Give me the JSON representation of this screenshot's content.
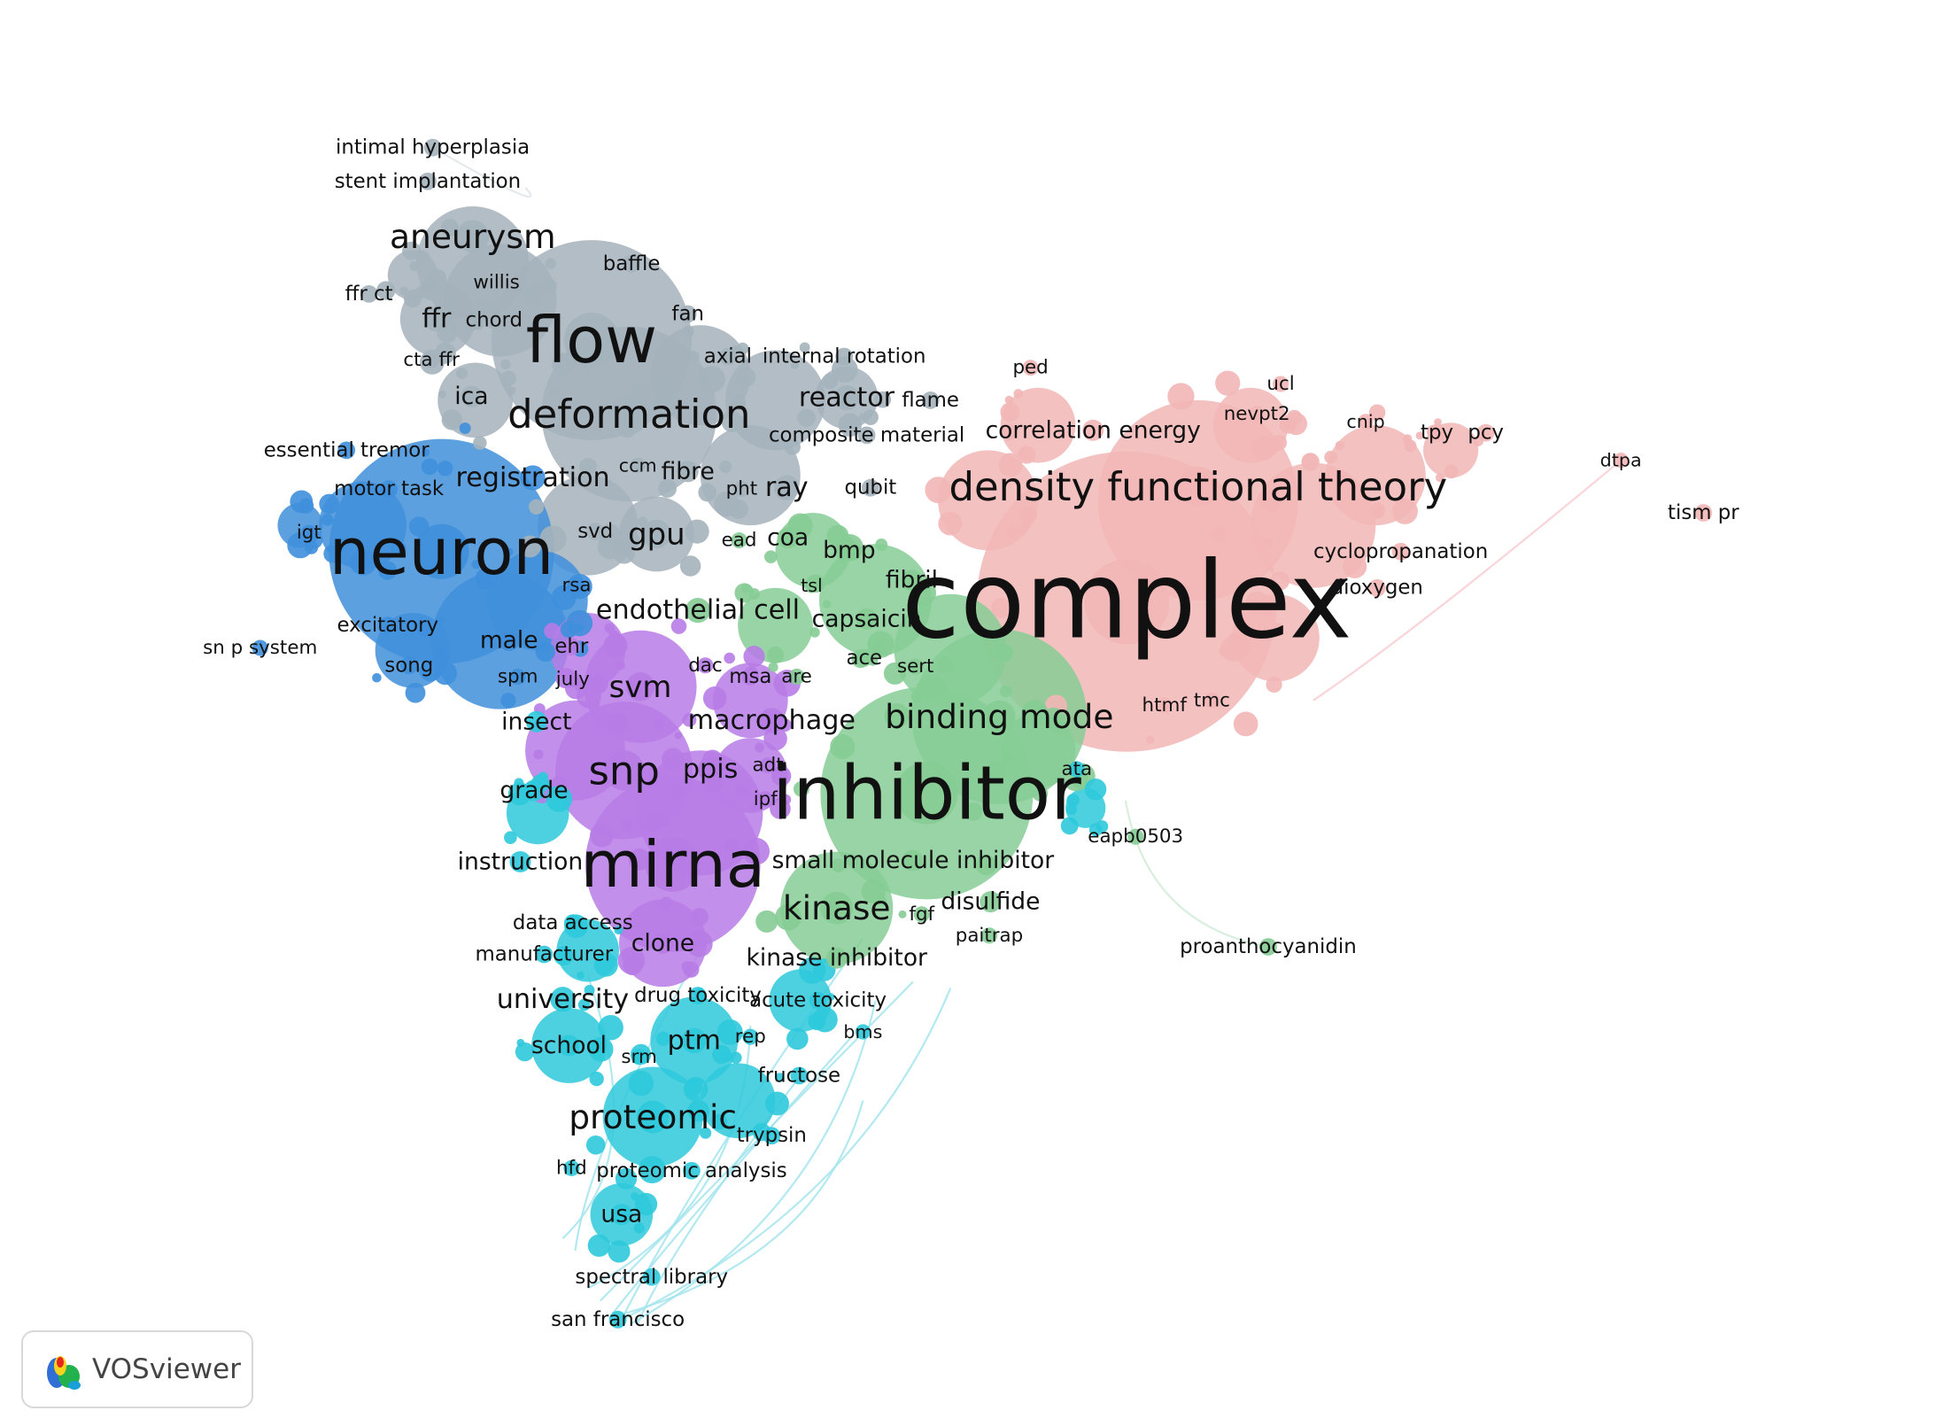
{
  "clusters": {
    "gray": {
      "color": "#a4b2bb"
    },
    "pink": {
      "color": "#f2b6b6"
    },
    "blue": {
      "color": "#3f8fdb"
    },
    "purple": {
      "color": "#b77ce6"
    },
    "green": {
      "color": "#86cc95"
    },
    "cyan": {
      "color": "#2ec9dc"
    }
  },
  "labels": [
    {
      "text": "intimal hyperplasia",
      "c": "gray",
      "w": 1
    },
    {
      "text": "stent implantation",
      "c": "gray",
      "w": 1
    },
    {
      "text": "aneurysm",
      "c": "gray",
      "w": 3
    },
    {
      "text": "baffle",
      "c": "gray",
      "w": 1
    },
    {
      "text": "willis",
      "c": "gray",
      "w": 0.8
    },
    {
      "text": "ffr ct",
      "c": "gray",
      "w": 1
    },
    {
      "text": "ffr",
      "c": "gray",
      "w": 2
    },
    {
      "text": "chord",
      "c": "gray",
      "w": 1
    },
    {
      "text": "flow",
      "c": "gray",
      "w": 6
    },
    {
      "text": "fan",
      "c": "gray",
      "w": 1
    },
    {
      "text": "axial",
      "c": "gray",
      "w": 1
    },
    {
      "text": "internal rotation",
      "c": "gray",
      "w": 1
    },
    {
      "text": "cta ffr",
      "c": "gray",
      "w": 0.8
    },
    {
      "text": "ica",
      "c": "gray",
      "w": 1.5
    },
    {
      "text": "deformation",
      "c": "gray",
      "w": 4
    },
    {
      "text": "reactor",
      "c": "gray",
      "w": 2
    },
    {
      "text": "flame",
      "c": "gray",
      "w": 1
    },
    {
      "text": "composite material",
      "c": "gray",
      "w": 1
    },
    {
      "text": "ray",
      "c": "gray",
      "w": 2
    },
    {
      "text": "qubit",
      "c": "gray",
      "w": 1
    },
    {
      "text": "registration",
      "c": "blue",
      "w": 2
    },
    {
      "text": "ccm",
      "c": "gray",
      "w": 0.7
    },
    {
      "text": "fibre",
      "c": "gray",
      "w": 1.5
    },
    {
      "text": "pht",
      "c": "gray",
      "w": 0.8
    },
    {
      "text": "gpu",
      "c": "gray",
      "w": 2.5
    },
    {
      "text": "svd",
      "c": "gray",
      "w": 1
    },
    {
      "text": "essential tremor",
      "c": "blue",
      "w": 1
    },
    {
      "text": "motor task",
      "c": "blue",
      "w": 1
    },
    {
      "text": "neuron",
      "c": "blue",
      "w": 6
    },
    {
      "text": "igt",
      "c": "blue",
      "w": 0.8
    },
    {
      "text": "rsa",
      "c": "blue",
      "w": 0.8
    },
    {
      "text": "excitatory",
      "c": "blue",
      "w": 1
    },
    {
      "text": "sn p system",
      "c": "blue",
      "w": 0.8
    },
    {
      "text": "male",
      "c": "blue",
      "w": 1.5
    },
    {
      "text": "song",
      "c": "blue",
      "w": 1
    },
    {
      "text": "ehr",
      "c": "purple",
      "w": 1
    },
    {
      "text": "spm",
      "c": "blue",
      "w": 0.8
    },
    {
      "text": "july",
      "c": "purple",
      "w": 0.8
    },
    {
      "text": "svm",
      "c": "purple",
      "w": 2.5
    },
    {
      "text": "dac",
      "c": "purple",
      "w": 0.8
    },
    {
      "text": "msa",
      "c": "purple",
      "w": 1
    },
    {
      "text": "are",
      "c": "green",
      "w": 0.8
    },
    {
      "text": "endothelial cell",
      "c": "green",
      "w": 2
    },
    {
      "text": "ead",
      "c": "green",
      "w": 0.8
    },
    {
      "text": "coa",
      "c": "green",
      "w": 1.5
    },
    {
      "text": "bmp",
      "c": "green",
      "w": 1.5
    },
    {
      "text": "fibril",
      "c": "green",
      "w": 1.5
    },
    {
      "text": "tsl",
      "c": "green",
      "w": 0.7
    },
    {
      "text": "capsaicin",
      "c": "green",
      "w": 1.5
    },
    {
      "text": "ace",
      "c": "green",
      "w": 1
    },
    {
      "text": "sert",
      "c": "green",
      "w": 0.8
    },
    {
      "text": "insect",
      "c": "cyan",
      "w": 1.5
    },
    {
      "text": "macrophage",
      "c": "purple",
      "w": 2
    },
    {
      "text": "binding mode",
      "c": "green",
      "w": 3
    },
    {
      "text": "snp",
      "c": "purple",
      "w": 4
    },
    {
      "text": "ppis",
      "c": "purple",
      "w": 2
    },
    {
      "text": "adt",
      "c": "purple",
      "w": 0.8
    },
    {
      "text": "ipf",
      "c": "purple",
      "w": 0.8
    },
    {
      "text": "grade",
      "c": "cyan",
      "w": 1.5
    },
    {
      "text": "inhibitor",
      "c": "green",
      "w": 7
    },
    {
      "text": "ata",
      "c": "cyan",
      "w": 0.8
    },
    {
      "text": "eapb0503",
      "c": "green",
      "w": 0.8
    },
    {
      "text": "instruction",
      "c": "cyan",
      "w": 1.5
    },
    {
      "text": "mirna",
      "c": "purple",
      "w": 6
    },
    {
      "text": "small molecule inhibitor",
      "c": "green",
      "w": 1.5
    },
    {
      "text": "kinase",
      "c": "green",
      "w": 3
    },
    {
      "text": "disulfide",
      "c": "green",
      "w": 1.5
    },
    {
      "text": "fgf",
      "c": "green",
      "w": 0.8
    },
    {
      "text": "paitrap",
      "c": "green",
      "w": 0.8
    },
    {
      "text": "data access",
      "c": "cyan",
      "w": 1
    },
    {
      "text": "manufacturer",
      "c": "cyan",
      "w": 1
    },
    {
      "text": "clone",
      "c": "purple",
      "w": 1.5
    },
    {
      "text": "kinase inhibitor",
      "c": "green",
      "w": 1.5
    },
    {
      "text": "university",
      "c": "cyan",
      "w": 2
    },
    {
      "text": "drug toxicity",
      "c": "cyan",
      "w": 1
    },
    {
      "text": "acute toxicity",
      "c": "cyan",
      "w": 1
    },
    {
      "text": "bms",
      "c": "cyan",
      "w": 0.7
    },
    {
      "text": "school",
      "c": "cyan",
      "w": 1.5
    },
    {
      "text": "ptm",
      "c": "cyan",
      "w": 2
    },
    {
      "text": "rep",
      "c": "cyan",
      "w": 0.8
    },
    {
      "text": "srm",
      "c": "cyan",
      "w": 0.8
    },
    {
      "text": "fructose",
      "c": "cyan",
      "w": 1
    },
    {
      "text": "proteomic",
      "c": "cyan",
      "w": 3
    },
    {
      "text": "trypsin",
      "c": "cyan",
      "w": 1
    },
    {
      "text": "hfd",
      "c": "cyan",
      "w": 0.8
    },
    {
      "text": "proteomic analysis",
      "c": "cyan",
      "w": 1
    },
    {
      "text": "usa",
      "c": "cyan",
      "w": 1.5
    },
    {
      "text": "spectral library",
      "c": "cyan",
      "w": 1
    },
    {
      "text": "san francisco",
      "c": "cyan",
      "w": 1
    },
    {
      "text": "proanthocyanidin",
      "c": "green",
      "w": 1
    },
    {
      "text": "ped",
      "c": "pink",
      "w": 0.8
    },
    {
      "text": "ucl",
      "c": "pink",
      "w": 0.8
    },
    {
      "text": "nevpt2",
      "c": "pink",
      "w": 0.8
    },
    {
      "text": "cnip",
      "c": "pink",
      "w": 0.7
    },
    {
      "text": "tpy",
      "c": "pink",
      "w": 1
    },
    {
      "text": "pcy",
      "c": "pink",
      "w": 1
    },
    {
      "text": "dtpa",
      "c": "pink",
      "w": 0.7
    },
    {
      "text": "tism pr",
      "c": "pink",
      "w": 1
    },
    {
      "text": "correlation energy",
      "c": "pink",
      "w": 1.5
    },
    {
      "text": "density functional theory",
      "c": "pink",
      "w": 4
    },
    {
      "text": "cyclopropanation",
      "c": "pink",
      "w": 1
    },
    {
      "text": "dioxygen",
      "c": "pink",
      "w": 1
    },
    {
      "text": "complex",
      "c": "pink",
      "w": 10
    },
    {
      "text": "htmf",
      "c": "pink",
      "w": 0.8
    },
    {
      "text": "tmc",
      "c": "pink",
      "w": 0.8
    }
  ],
  "brand": {
    "name": "VOSviewer"
  }
}
